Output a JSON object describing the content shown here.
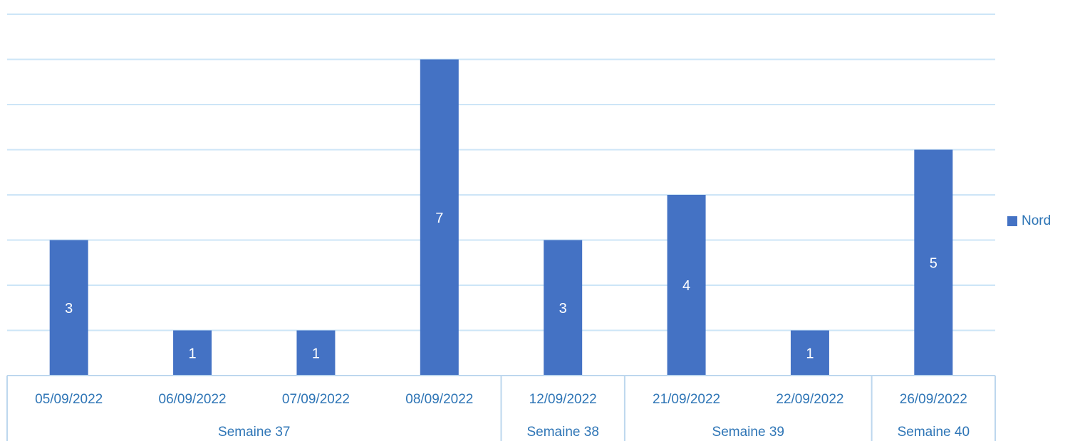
{
  "chart_data": {
    "type": "bar",
    "categories": [
      "05/09/2022",
      "06/09/2022",
      "07/09/2022",
      "08/09/2022",
      "12/09/2022",
      "21/09/2022",
      "22/09/2022",
      "26/09/2022"
    ],
    "groups": [
      {
        "label": "Semaine 37",
        "categories": [
          "05/09/2022",
          "06/09/2022",
          "07/09/2022",
          "08/09/2022"
        ]
      },
      {
        "label": "Semaine 38",
        "categories": [
          "12/09/2022"
        ]
      },
      {
        "label": "Semaine 39",
        "categories": [
          "21/09/2022",
          "22/09/2022"
        ]
      },
      {
        "label": "Semaine 40",
        "categories": [
          "26/09/2022"
        ]
      }
    ],
    "series": [
      {
        "name": "Nord",
        "values": [
          3,
          1,
          1,
          7,
          3,
          4,
          1,
          5
        ]
      }
    ],
    "data_labels": true,
    "ylim": [
      0,
      8
    ],
    "grid": true,
    "legend": "right",
    "title": "",
    "xlabel": "",
    "ylabel": ""
  },
  "colors": {
    "bar": "#4472C4",
    "grid": "#CDE5F7",
    "axis": "#BDD7EE",
    "text": "#2E75B6",
    "data_label": "#FFFFFF"
  }
}
